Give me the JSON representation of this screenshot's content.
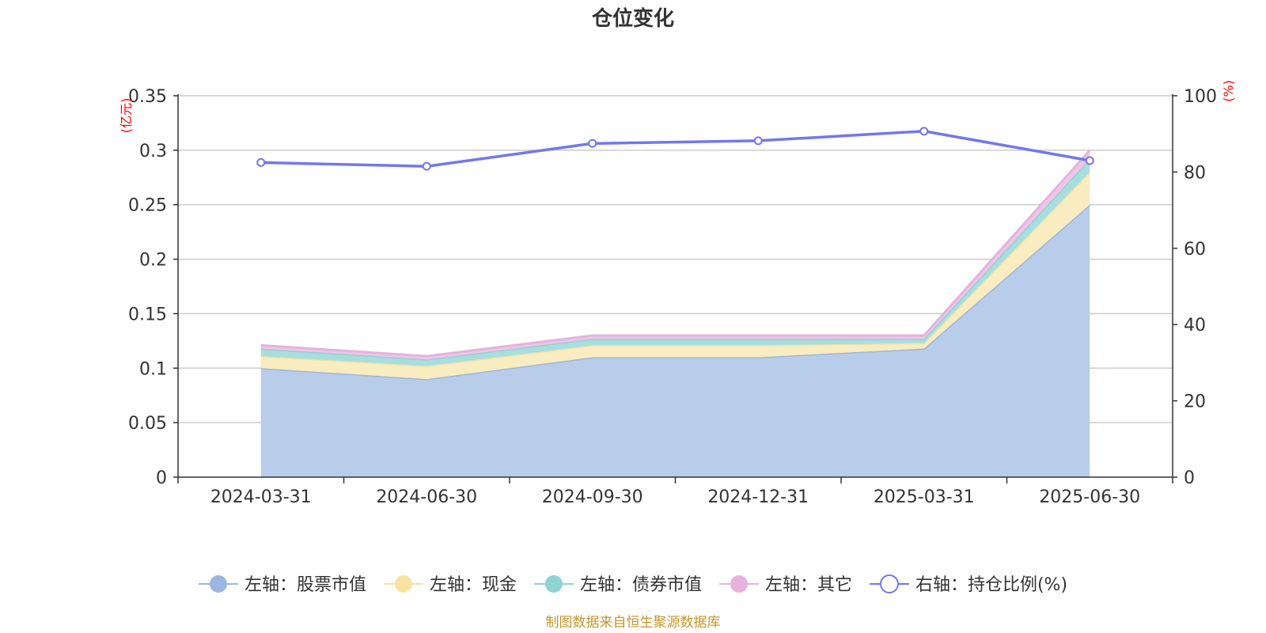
{
  "chart_data": {
    "type": "area",
    "title": "仓位变化",
    "categories": [
      "2024-03-31",
      "2024-06-30",
      "2024-09-30",
      "2024-12-31",
      "2025-03-31",
      "2025-06-30"
    ],
    "left_axis": {
      "unit_label": "(亿元)",
      "ylim": [
        0,
        0.35
      ],
      "ticks": [
        "0",
        "0.05",
        "0.1",
        "0.15",
        "0.2",
        "0.25",
        "0.3",
        "0.35"
      ]
    },
    "right_axis": {
      "unit_label": "(%)",
      "ylim": [
        0,
        100
      ],
      "ticks": [
        "0",
        "20",
        "40",
        "60",
        "80",
        "100"
      ]
    },
    "stacked_series": [
      {
        "name": "左轴：股票市值",
        "color": "#9bb6e0",
        "fill": "#b8cdea",
        "values": [
          0.1,
          0.09,
          0.11,
          0.11,
          0.118,
          0.25
        ]
      },
      {
        "name": "左轴：现金",
        "color": "#f7e2a0",
        "fill": "#f8ecc0",
        "values": [
          0.011,
          0.012,
          0.011,
          0.011,
          0.005,
          0.03
        ]
      },
      {
        "name": "左轴：债券市值",
        "color": "#8fd3d3",
        "fill": "#a9dede",
        "values": [
          0.007,
          0.006,
          0.006,
          0.006,
          0.004,
          0.012
        ]
      },
      {
        "name": "左轴：其它",
        "color": "#e6b3dd",
        "fill": "#edc6e7",
        "values": [
          0.003,
          0.003,
          0.003,
          0.003,
          0.003,
          0.008
        ]
      }
    ],
    "line_series": {
      "name": "右轴：持仓比例(%)",
      "color": "#7377ee",
      "values": [
        82.5,
        81.5,
        87.5,
        88.2,
        90.7,
        83.0
      ]
    },
    "legend_position": "bottom-center",
    "grid": true
  },
  "footer": {
    "source": "制图数据来自恒生聚源数据库"
  }
}
